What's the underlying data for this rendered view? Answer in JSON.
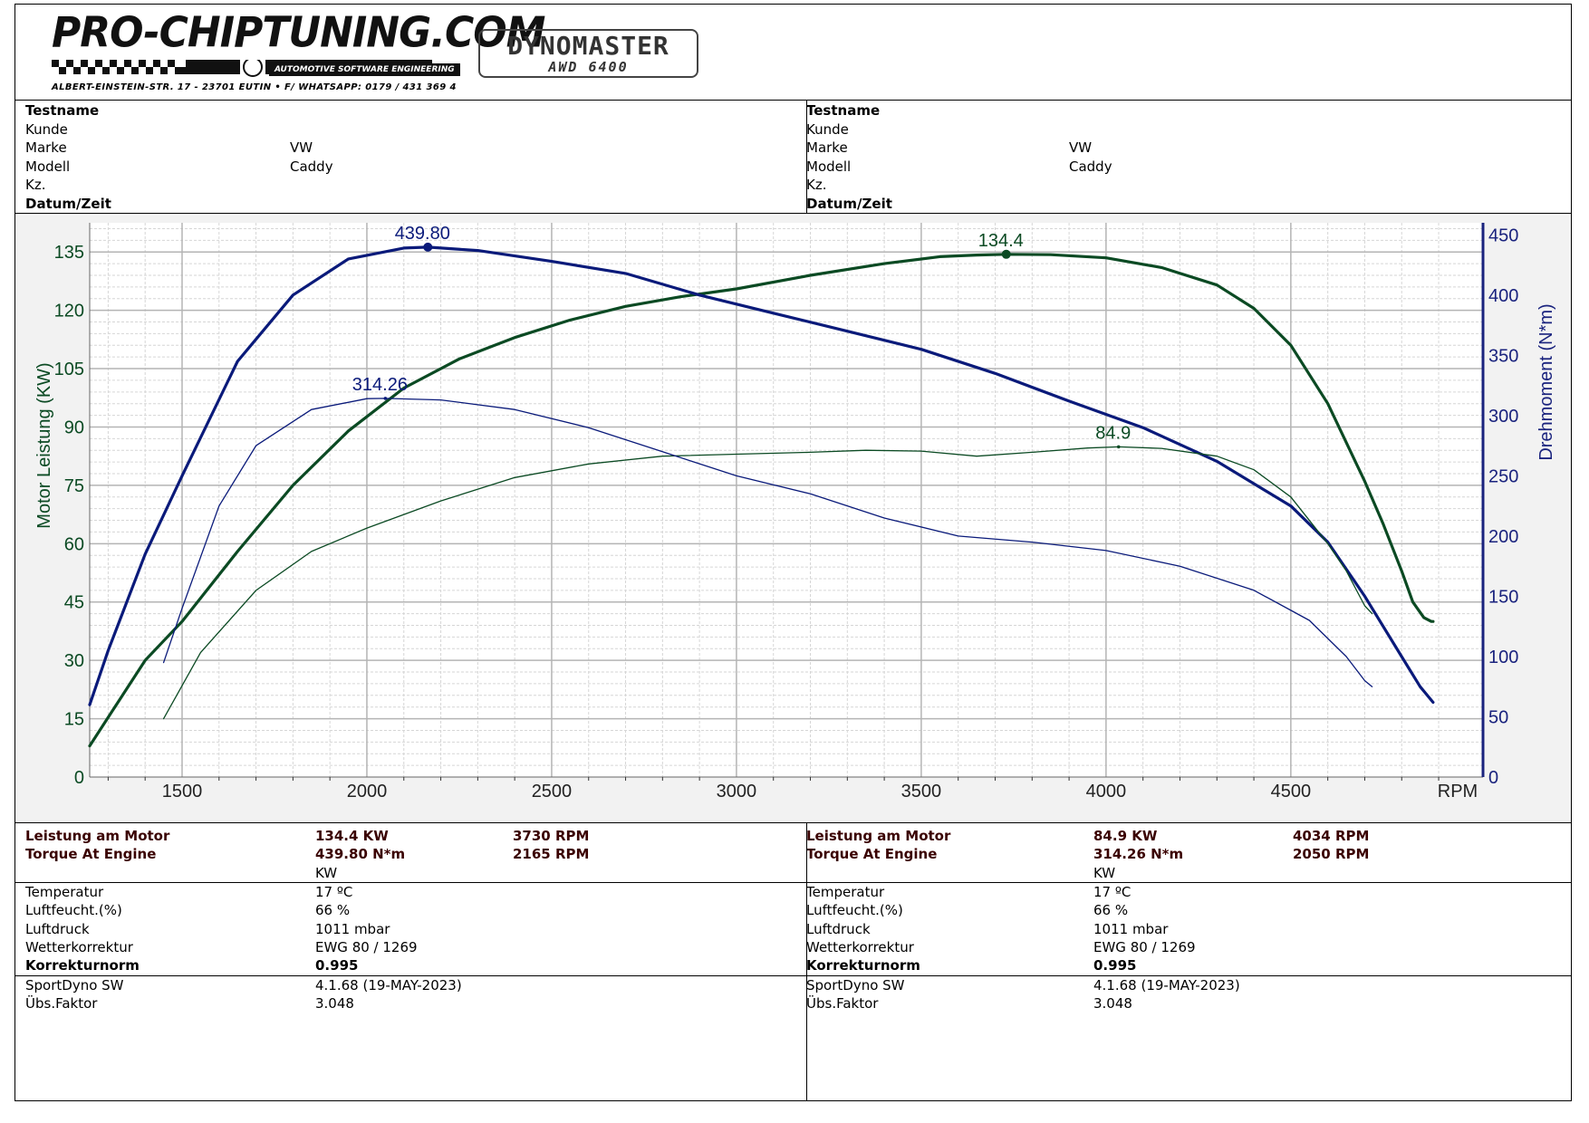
{
  "header": {
    "logo_text": "PRO-CHIPTUNING.COM",
    "logo_tagline": "AUTOMOTIVE SOFTWARE ENGINEERING",
    "address": "ALBERT-EINSTEIN-STR. 17 - 23701 EUTIN • F/ WHATSAPP: 0179 / 431 369 4",
    "dyno_brand": "DYNOMASTER",
    "dyno_model": "AWD 6400"
  },
  "info": {
    "left": [
      {
        "label": "Testname",
        "value": "",
        "bold": true
      },
      {
        "label": "Kunde",
        "value": "",
        "bold": false
      },
      {
        "label": "Marke",
        "value": "VW",
        "bold": false
      },
      {
        "label": "Modell",
        "value": "Caddy",
        "bold": false
      },
      {
        "label": "Kz.",
        "value": "",
        "bold": false
      },
      {
        "label": "Datum/Zeit",
        "value": "",
        "bold": true
      }
    ],
    "right": [
      {
        "label": "Testname",
        "value": "",
        "bold": true
      },
      {
        "label": "Kunde",
        "value": "",
        "bold": false
      },
      {
        "label": "Marke",
        "value": "VW",
        "bold": false
      },
      {
        "label": "Modell",
        "value": "Caddy",
        "bold": false
      },
      {
        "label": "Kz.",
        "value": "",
        "bold": false
      },
      {
        "label": "Datum/Zeit",
        "value": "",
        "bold": true
      }
    ]
  },
  "results": {
    "left": {
      "power_label": "Leistung am Motor",
      "power_value": "134.4 KW",
      "power_rpm": "3730 RPM",
      "torque_label": "Torque At Engine",
      "torque_value": "439.80 N*m",
      "torque_rpm": "2165 RPM",
      "unit": "KW"
    },
    "right": {
      "power_label": "Leistung am Motor",
      "power_value": "84.9 KW",
      "power_rpm": "4034 RPM",
      "torque_label": "Torque At Engine",
      "torque_value": "314.26 N*m",
      "torque_rpm": "2050 RPM",
      "unit": "KW"
    }
  },
  "conditions": {
    "left": [
      {
        "label": "Temperatur",
        "value": "17 ºC",
        "bold": false
      },
      {
        "label": "Luftfeucht.(%)",
        "value": "66 %",
        "bold": false
      },
      {
        "label": "Luftdruck",
        "value": "1011 mbar",
        "bold": false
      },
      {
        "label": "Wetterkorrektur",
        "value": "EWG 80 / 1269",
        "bold": false
      },
      {
        "label": "Korrekturnorm",
        "value": "0.995",
        "bold": true
      }
    ],
    "right": [
      {
        "label": "Temperatur",
        "value": "17 ºC",
        "bold": false
      },
      {
        "label": "Luftfeucht.(%)",
        "value": "66 %",
        "bold": false
      },
      {
        "label": "Luftdruck",
        "value": "1011 mbar",
        "bold": false
      },
      {
        "label": "Wetterkorrektur",
        "value": "EWG 80 / 1269",
        "bold": false
      },
      {
        "label": "Korrekturnorm",
        "value": "0.995",
        "bold": true
      }
    ]
  },
  "software": {
    "left": [
      {
        "label": "SportDyno SW",
        "value": "4.1.68 (19-MAY-2023)"
      },
      {
        "label": "Übs.Faktor",
        "value": "3.048"
      }
    ],
    "right": [
      {
        "label": "SportDyno SW",
        "value": "4.1.68 (19-MAY-2023)"
      },
      {
        "label": "Übs.Faktor",
        "value": "3.048"
      }
    ]
  },
  "colors": {
    "power": "#0b4a23",
    "torque": "#0a1a7a",
    "left_axis": "#0b4a23",
    "right_axis": "#1a237e",
    "grid_major": "#b4b4b4",
    "grid_minor": "#d6d6d6",
    "plot_bg": "#ffffff",
    "frame_bg": "#f2f2f2"
  },
  "chart_data": {
    "type": "line",
    "xlabel": "RPM",
    "ylabel": "Motor Leistung (KW)",
    "y2label": "Drehmoment (N*m)",
    "xlim": [
      1250,
      5020
    ],
    "ylim": [
      0,
      142.5
    ],
    "y2lim": [
      0,
      460
    ],
    "xticks": [
      1500,
      2000,
      2500,
      3000,
      3500,
      4000,
      4500
    ],
    "yticks": [
      0,
      15,
      30,
      45,
      60,
      75,
      90,
      105,
      120,
      135
    ],
    "y2ticks": [
      0,
      50,
      100,
      150,
      200,
      250,
      300,
      350,
      400,
      450
    ],
    "grid": true,
    "series": [
      {
        "axis": "left",
        "style": "thick",
        "color": "#0b4a23",
        "x": [
          1250,
          1400,
          1500,
          1650,
          1800,
          1950,
          2100,
          2250,
          2400,
          2550,
          2700,
          2850,
          3000,
          3200,
          3400,
          3550,
          3650,
          3730,
          3850,
          4000,
          4150,
          4300,
          4400,
          4500,
          4600,
          4700,
          4750,
          4800,
          4830,
          4860,
          4880,
          4885
        ],
        "y": [
          8,
          30,
          40,
          58,
          75,
          89,
          100,
          107.5,
          113,
          117.5,
          121,
          123.5,
          125.5,
          129,
          132,
          133.8,
          134.2,
          134.4,
          134.3,
          133.5,
          131,
          126.5,
          120.5,
          111,
          96,
          76,
          65,
          53,
          45,
          41,
          40,
          40
        ]
      },
      {
        "axis": "right",
        "style": "thick",
        "color": "#0a1a7a",
        "x": [
          1250,
          1300,
          1400,
          1500,
          1650,
          1800,
          1950,
          2100,
          2165,
          2300,
          2500,
          2700,
          2900,
          3100,
          3300,
          3500,
          3700,
          3900,
          4100,
          4300,
          4500,
          4600,
          4700,
          4800,
          4850,
          4885
        ],
        "y": [
          60,
          105,
          185,
          250,
          345,
          400,
          430,
          439,
          439.8,
          437,
          428,
          418,
          400,
          385,
          370,
          355,
          335,
          312,
          290,
          262,
          225,
          195,
          150,
          100,
          75,
          62
        ]
      },
      {
        "axis": "left",
        "style": "thin",
        "color": "#0b4a23",
        "x": [
          1450,
          1550,
          1700,
          1850,
          2000,
          2200,
          2400,
          2600,
          2800,
          3000,
          3200,
          3350,
          3500,
          3650,
          3800,
          3950,
          4034,
          4150,
          4300,
          4400,
          4500,
          4600,
          4650,
          4700,
          4720
        ],
        "y": [
          15,
          32,
          48,
          58,
          64,
          71,
          77,
          80.5,
          82.5,
          83,
          83.5,
          84,
          83.8,
          82.5,
          83.5,
          84.6,
          84.9,
          84.5,
          82.5,
          79,
          72,
          60,
          53,
          44,
          42
        ]
      },
      {
        "axis": "right",
        "style": "thin",
        "color": "#0a1a7a",
        "x": [
          1450,
          1500,
          1600,
          1700,
          1850,
          2000,
          2050,
          2200,
          2400,
          2600,
          2800,
          3000,
          3200,
          3400,
          3600,
          3800,
          4000,
          4200,
          4400,
          4550,
          4650,
          4700,
          4720
        ],
        "y": [
          95,
          140,
          225,
          275,
          305,
          314,
          314.26,
          313,
          305,
          290,
          270,
          250,
          235,
          215,
          200,
          195,
          188,
          175,
          155,
          130,
          100,
          80,
          75
        ]
      }
    ],
    "annotations": [
      {
        "text": "439.80",
        "axis": "right",
        "x": 2165,
        "y": 439.8,
        "color": "#0a1a7a",
        "marker": true
      },
      {
        "text": "134.4",
        "axis": "left",
        "x": 3730,
        "y": 134.4,
        "color": "#0b4a23",
        "marker": true
      },
      {
        "text": "314.26",
        "axis": "right",
        "x": 2050,
        "y": 314.26,
        "color": "#0a1a7a",
        "marker": false
      },
      {
        "text": "84.9",
        "axis": "left",
        "x": 4034,
        "y": 84.9,
        "color": "#0b4a23",
        "marker": false
      }
    ]
  }
}
